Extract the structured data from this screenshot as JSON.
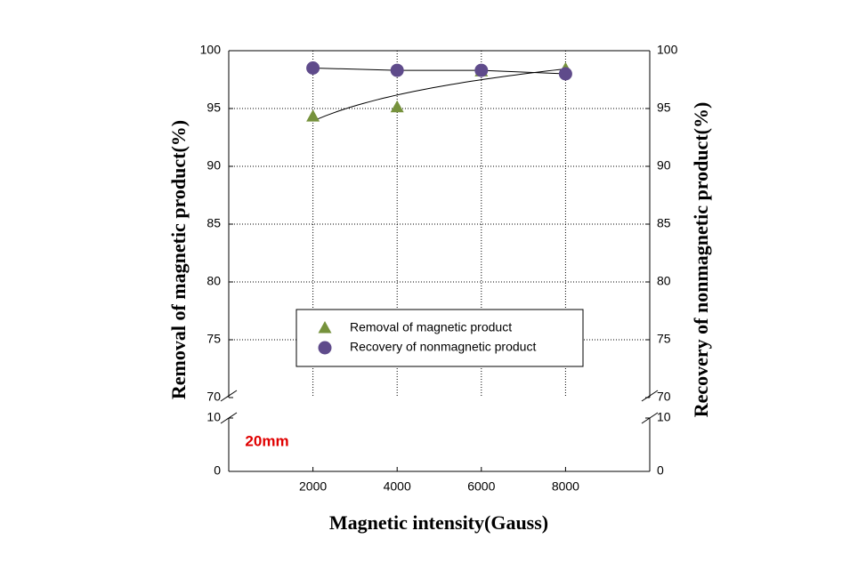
{
  "chart_data": {
    "type": "scatter",
    "x_label": "Magnetic intensity(Gauss)",
    "y_label": "Removal of magnetic product(%)",
    "y2_label": "Recovery of nonmagnetic product(%)",
    "annotation": "20mm",
    "x": [
      2000,
      4000,
      6000,
      8000
    ],
    "xlim": [
      0,
      10000
    ],
    "xticks": [
      2000,
      4000,
      6000,
      8000
    ],
    "ylim": [
      0,
      100
    ],
    "yticks": [
      0,
      10,
      70,
      75,
      80,
      85,
      90,
      95,
      100
    ],
    "y2lim": [
      0,
      100
    ],
    "y2ticks": [
      0,
      10,
      70,
      75,
      80,
      85,
      90,
      95,
      100
    ],
    "axis_break": true,
    "grid": true,
    "legend": "center",
    "series": [
      {
        "name": "Removal of magnetic product",
        "color": "#76923c",
        "marker": "triangle",
        "trend": "log",
        "values": [
          94.3,
          95.1,
          98.2,
          98.4
        ]
      },
      {
        "name": "Recovery of nonmagnetic product",
        "color": "#5f4b8b",
        "marker": "circle",
        "trend": "line",
        "axis": "y2",
        "values": [
          98.5,
          98.3,
          98.3,
          98.0
        ]
      }
    ]
  }
}
